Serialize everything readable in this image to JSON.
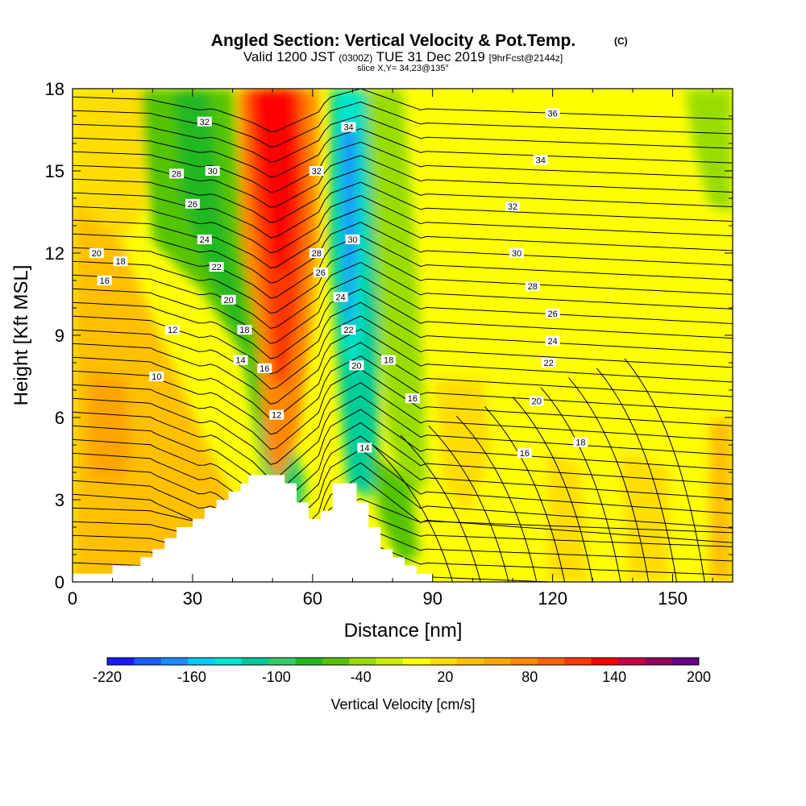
{
  "chart_data": {
    "type": "heatmap",
    "title": "Angled Section: Vertical Velocity & Pot.Temp.",
    "title_suffix": "(C)",
    "subtitle_main": "Valid 1200 JST",
    "subtitle_z": "(0300Z)",
    "subtitle_date": "TUE 31 Dec 2019",
    "subtitle_fcst": "[9hrFcst@2144z]",
    "slice_label": "slice X,Y= 34,23@135°",
    "xlabel": "Distance [nm]",
    "ylabel": "Height [Kft MSL]",
    "xlim": [
      0,
      165
    ],
    "ylim": [
      0,
      18
    ],
    "x_ticks": [
      "0",
      "30",
      "60",
      "90",
      "120",
      "150"
    ],
    "y_ticks": [
      "0",
      "3",
      "6",
      "9",
      "12",
      "15",
      "18"
    ],
    "colorbar": {
      "label": "Vertical Velocity [cm/s]",
      "tick_labels": [
        "-220",
        "-160",
        "-100",
        "-40",
        "20",
        "80",
        "140",
        "200"
      ],
      "colors": [
        "#1a1aff",
        "#1a5cff",
        "#1a8cff",
        "#00ccff",
        "#00e5cc",
        "#00cc99",
        "#33cc66",
        "#22b822",
        "#55c400",
        "#99dd00",
        "#ccf000",
        "#ffff00",
        "#ffdd00",
        "#ffc000",
        "#ffa500",
        "#ff8800",
        "#ff6000",
        "#ff3800",
        "#ff0000",
        "#cc0044",
        "#99005d",
        "#660088"
      ]
    },
    "terrain_profile": [
      [
        0,
        0.3
      ],
      [
        10,
        0.3
      ],
      [
        10,
        0.6
      ],
      [
        17,
        0.6
      ],
      [
        17,
        0.9
      ],
      [
        20,
        0.9
      ],
      [
        20,
        1.2
      ],
      [
        23,
        1.2
      ],
      [
        23,
        1.6
      ],
      [
        26,
        1.6
      ],
      [
        26,
        2.0
      ],
      [
        30,
        2.0
      ],
      [
        30,
        2.3
      ],
      [
        33,
        2.3
      ],
      [
        33,
        2.7
      ],
      [
        36,
        2.7
      ],
      [
        36,
        3.0
      ],
      [
        39,
        3.0
      ],
      [
        39,
        3.3
      ],
      [
        42,
        3.3
      ],
      [
        42,
        3.6
      ],
      [
        44,
        3.6
      ],
      [
        44,
        3.9
      ],
      [
        53,
        3.9
      ],
      [
        53,
        3.6
      ],
      [
        56,
        3.6
      ],
      [
        56,
        2.9
      ],
      [
        59,
        2.9
      ],
      [
        59,
        2.3
      ],
      [
        62,
        2.3
      ],
      [
        62,
        2.6
      ],
      [
        65,
        2.6
      ],
      [
        65,
        3.6
      ],
      [
        71,
        3.6
      ],
      [
        71,
        2.9
      ],
      [
        74,
        2.9
      ],
      [
        74,
        2.0
      ],
      [
        77,
        2.0
      ],
      [
        77,
        1.2
      ],
      [
        80,
        1.2
      ],
      [
        80,
        0.9
      ],
      [
        83,
        0.9
      ],
      [
        83,
        0.6
      ],
      [
        86,
        0.6
      ],
      [
        86,
        0.3
      ],
      [
        90,
        0.3
      ],
      [
        90,
        0
      ]
    ],
    "contour_labels": [
      {
        "x": 33,
        "y": 16.8,
        "text": "32"
      },
      {
        "x": 35,
        "y": 15.0,
        "text": "30"
      },
      {
        "x": 26,
        "y": 14.9,
        "text": "28"
      },
      {
        "x": 30,
        "y": 13.8,
        "text": "26"
      },
      {
        "x": 33,
        "y": 12.5,
        "text": "24"
      },
      {
        "x": 36,
        "y": 11.5,
        "text": "22"
      },
      {
        "x": 39,
        "y": 10.3,
        "text": "20"
      },
      {
        "x": 43,
        "y": 9.2,
        "text": "18"
      },
      {
        "x": 42,
        "y": 8.1,
        "text": "14"
      },
      {
        "x": 48,
        "y": 7.8,
        "text": "16"
      },
      {
        "x": 51,
        "y": 6.1,
        "text": "12"
      },
      {
        "x": 25,
        "y": 9.2,
        "text": "12"
      },
      {
        "x": 21,
        "y": 7.5,
        "text": "10"
      },
      {
        "x": 6,
        "y": 12.0,
        "text": "20"
      },
      {
        "x": 12,
        "y": 11.7,
        "text": "18"
      },
      {
        "x": 8,
        "y": 11.0,
        "text": "16"
      },
      {
        "x": 61,
        "y": 15.0,
        "text": "32"
      },
      {
        "x": 61,
        "y": 12.0,
        "text": "28"
      },
      {
        "x": 62,
        "y": 11.3,
        "text": "26"
      },
      {
        "x": 67,
        "y": 10.4,
        "text": "24"
      },
      {
        "x": 69,
        "y": 9.2,
        "text": "22"
      },
      {
        "x": 71,
        "y": 7.9,
        "text": "20"
      },
      {
        "x": 79,
        "y": 8.1,
        "text": "18"
      },
      {
        "x": 85,
        "y": 6.7,
        "text": "16"
      },
      {
        "x": 73,
        "y": 4.9,
        "text": "14"
      },
      {
        "x": 69,
        "y": 16.6,
        "text": "34"
      },
      {
        "x": 70,
        "y": 12.5,
        "text": "30"
      },
      {
        "x": 120,
        "y": 17.1,
        "text": "36"
      },
      {
        "x": 117,
        "y": 15.4,
        "text": "34"
      },
      {
        "x": 110,
        "y": 13.7,
        "text": "32"
      },
      {
        "x": 111,
        "y": 12.0,
        "text": "30"
      },
      {
        "x": 115,
        "y": 10.8,
        "text": "28"
      },
      {
        "x": 120,
        "y": 9.8,
        "text": "26"
      },
      {
        "x": 120,
        "y": 8.8,
        "text": "24"
      },
      {
        "x": 119,
        "y": 8.0,
        "text": "22"
      },
      {
        "x": 116,
        "y": 6.6,
        "text": "20"
      },
      {
        "x": 127,
        "y": 5.1,
        "text": "18"
      },
      {
        "x": 113,
        "y": 4.7,
        "text": "16"
      }
    ]
  }
}
